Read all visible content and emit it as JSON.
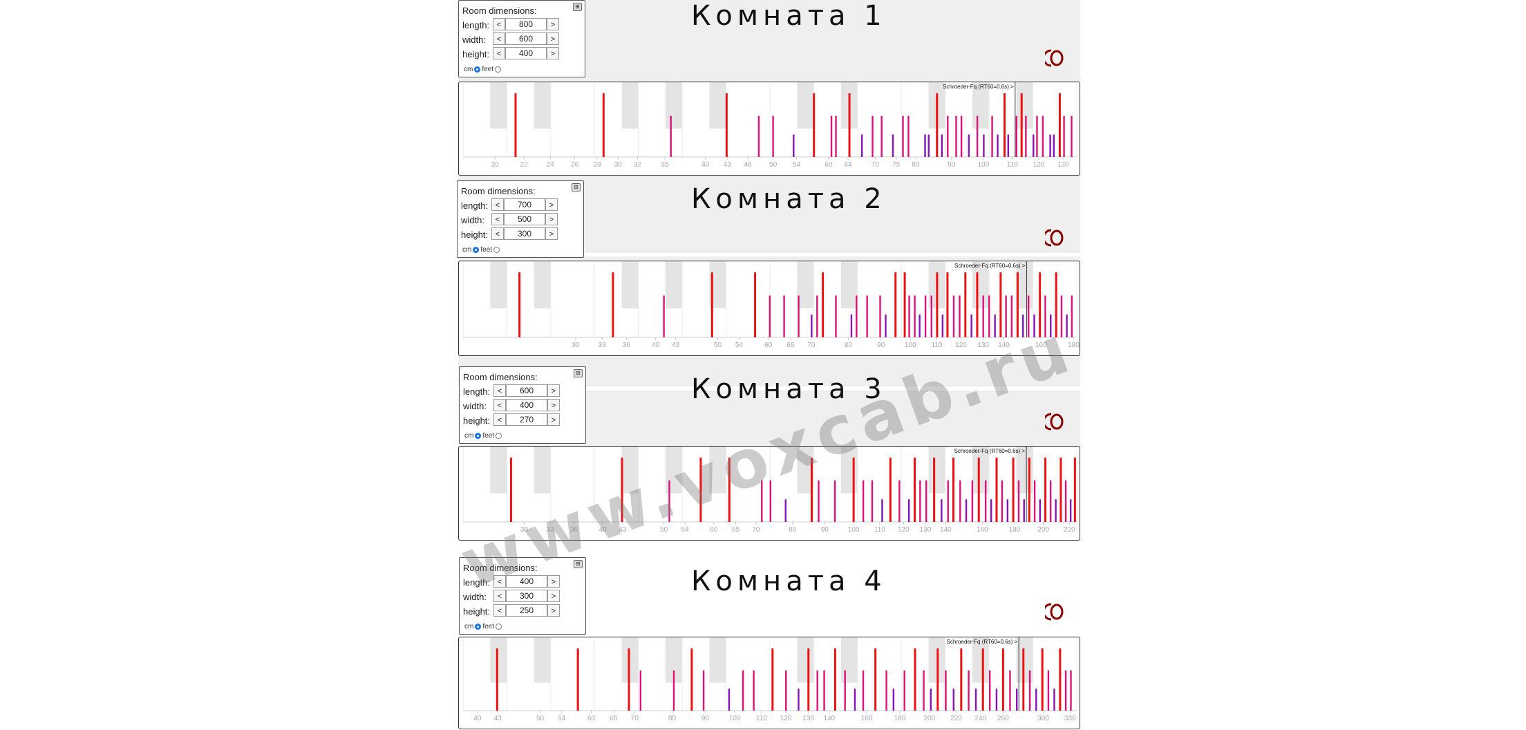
{
  "watermark": "www.voxcab.ru",
  "colors": {
    "mode_strong": "#ee1111",
    "mode_mid": "#dd1177",
    "mode_weak": "#8811bb",
    "logo": "#8b0000"
  },
  "rooms": [
    {
      "title": "Комната 1",
      "dims": {
        "header": "Room dimensions:",
        "close": "⊞",
        "length_label": "length:",
        "width_label": "width:",
        "height_label": "height:",
        "length": "800",
        "width": "600",
        "height": "400",
        "cm": "cm",
        "feet": "feet",
        "dec": "<",
        "inc": ">"
      },
      "graph": {
        "schroeder_label": "Schroeder-Fq (RT60=0.6s) >",
        "freq_min": 18,
        "freq_max": 136,
        "schroeder_freq": 111,
        "ticks": [
          "20",
          "22",
          "24",
          "26",
          "28",
          "30",
          "32",
          "35",
          "40",
          "43",
          "46",
          "50",
          "54",
          "60",
          "64",
          "70",
          "75",
          "80",
          "90",
          "100",
          "110",
          "120",
          "130"
        ],
        "modes": [
          {
            "f": 21.4,
            "level": 3
          },
          {
            "f": 28.6,
            "level": 3
          },
          {
            "f": 35.7,
            "level": 2
          },
          {
            "f": 42.9,
            "level": 3
          },
          {
            "f": 47.7,
            "level": 2
          },
          {
            "f": 50.0,
            "level": 2
          },
          {
            "f": 53.5,
            "level": 1
          },
          {
            "f": 57.2,
            "level": 3
          },
          {
            "f": 60.6,
            "level": 2
          },
          {
            "f": 61.5,
            "level": 2
          },
          {
            "f": 64.3,
            "level": 3
          },
          {
            "f": 67.0,
            "level": 1
          },
          {
            "f": 69.4,
            "level": 2
          },
          {
            "f": 71.5,
            "level": 2
          },
          {
            "f": 74.2,
            "level": 1
          },
          {
            "f": 76.7,
            "level": 2
          },
          {
            "f": 78.1,
            "level": 2
          },
          {
            "f": 82.5,
            "level": 1
          },
          {
            "f": 83.5,
            "level": 1
          },
          {
            "f": 85.8,
            "level": 3
          },
          {
            "f": 87.2,
            "level": 1
          },
          {
            "f": 88.9,
            "level": 2
          },
          {
            "f": 91.4,
            "level": 2
          },
          {
            "f": 93.0,
            "level": 2
          },
          {
            "f": 95.3,
            "level": 1
          },
          {
            "f": 98.0,
            "level": 2
          },
          {
            "f": 100.1,
            "level": 1
          },
          {
            "f": 102.9,
            "level": 2
          },
          {
            "f": 104.8,
            "level": 1
          },
          {
            "f": 107.2,
            "level": 3
          },
          {
            "f": 108.5,
            "level": 1
          },
          {
            "f": 111.5,
            "level": 2
          },
          {
            "f": 113.4,
            "level": 3
          },
          {
            "f": 115.0,
            "level": 2
          },
          {
            "f": 117.9,
            "level": 1
          },
          {
            "f": 119.3,
            "level": 2
          },
          {
            "f": 121.6,
            "level": 2
          },
          {
            "f": 124.6,
            "level": 1
          },
          {
            "f": 126.1,
            "level": 1
          },
          {
            "f": 128.6,
            "level": 3
          },
          {
            "f": 130.4,
            "level": 2
          },
          {
            "f": 133.7,
            "level": 2
          }
        ]
      }
    },
    {
      "title": "Комната 2",
      "dims": {
        "header": "Room dimensions:",
        "close": "⊞",
        "length_label": "length:",
        "width_label": "width:",
        "height_label": "height:",
        "length": "700",
        "width": "500",
        "height": "300",
        "cm": "cm",
        "feet": "feet",
        "dec": "<",
        "inc": ">"
      },
      "graph": {
        "schroeder_label": "Schroeder-Fq (RT60=0.6s) >",
        "freq_min": 20,
        "freq_max": 182,
        "schroeder_freq": 152,
        "ticks": [
          "30",
          "33",
          "36",
          "40",
          "43",
          "50",
          "54",
          "60",
          "65",
          "70",
          "80",
          "90",
          "100",
          "110",
          "120",
          "130",
          "140",
          "160",
          "180"
        ],
        "modes": [
          {
            "f": 24.5,
            "level": 3
          },
          {
            "f": 34.3,
            "level": 3
          },
          {
            "f": 41.2,
            "level": 2
          },
          {
            "f": 49.0,
            "level": 3
          },
          {
            "f": 57.2,
            "level": 3
          },
          {
            "f": 60.3,
            "level": 2
          },
          {
            "f": 63.5,
            "level": 2
          },
          {
            "f": 66.9,
            "level": 2
          },
          {
            "f": 70.1,
            "level": 1
          },
          {
            "f": 71.5,
            "level": 2
          },
          {
            "f": 73.0,
            "level": 3
          },
          {
            "f": 76.5,
            "level": 2
          },
          {
            "f": 80.9,
            "level": 1
          },
          {
            "f": 82.4,
            "level": 2
          },
          {
            "f": 85.6,
            "level": 2
          },
          {
            "f": 89.7,
            "level": 2
          },
          {
            "f": 91.5,
            "level": 1
          },
          {
            "f": 94.8,
            "level": 3
          },
          {
            "f": 98.0,
            "level": 3
          },
          {
            "f": 99.6,
            "level": 2
          },
          {
            "f": 101.6,
            "level": 2
          },
          {
            "f": 103.4,
            "level": 1
          },
          {
            "f": 105.6,
            "level": 2
          },
          {
            "f": 107.9,
            "level": 2
          },
          {
            "f": 110.1,
            "level": 3
          },
          {
            "f": 112.3,
            "level": 1
          },
          {
            "f": 114.3,
            "level": 3
          },
          {
            "f": 116.9,
            "level": 2
          },
          {
            "f": 119.4,
            "level": 2
          },
          {
            "f": 121.9,
            "level": 3
          },
          {
            "f": 124.6,
            "level": 1
          },
          {
            "f": 127.2,
            "level": 3
          },
          {
            "f": 130.0,
            "level": 2
          },
          {
            "f": 132.8,
            "level": 2
          },
          {
            "f": 135.6,
            "level": 1
          },
          {
            "f": 138.4,
            "level": 3
          },
          {
            "f": 141.1,
            "level": 2
          },
          {
            "f": 144.0,
            "level": 2
          },
          {
            "f": 147.1,
            "level": 3
          },
          {
            "f": 150.0,
            "level": 1
          },
          {
            "f": 153.0,
            "level": 2
          },
          {
            "f": 156.2,
            "level": 1
          },
          {
            "f": 159.4,
            "level": 3
          },
          {
            "f": 162.5,
            "level": 2
          },
          {
            "f": 165.7,
            "level": 1
          },
          {
            "f": 169.0,
            "level": 3
          },
          {
            "f": 172.3,
            "level": 2
          },
          {
            "f": 175.6,
            "level": 1
          },
          {
            "f": 178.8,
            "level": 2
          }
        ]
      }
    },
    {
      "title": "Комната 3",
      "dims": {
        "header": "Room dimensions:",
        "close": "⊞",
        "length_label": "length:",
        "width_label": "width:",
        "height_label": "height:",
        "length": "600",
        "width": "400",
        "height": "270",
        "cm": "cm",
        "feet": "feet",
        "dec": "<",
        "inc": ">"
      },
      "graph": {
        "schroeder_label": "Schroeder-Fq (RT60=0.6s) >",
        "freq_min": 24,
        "freq_max": 226,
        "schroeder_freq": 188,
        "ticks": [
          "30",
          "33",
          "36",
          "40",
          "43",
          "50",
          "54",
          "60",
          "65",
          "70",
          "80",
          "90",
          "100",
          "110",
          "120",
          "130",
          "140",
          "160",
          "180",
          "200",
          "220"
        ],
        "modes": [
          {
            "f": 28.6,
            "level": 3
          },
          {
            "f": 42.9,
            "level": 3
          },
          {
            "f": 51.0,
            "level": 2
          },
          {
            "f": 57.2,
            "level": 3
          },
          {
            "f": 63.5,
            "level": 3
          },
          {
            "f": 71.5,
            "level": 2
          },
          {
            "f": 73.8,
            "level": 2
          },
          {
            "f": 78.0,
            "level": 1
          },
          {
            "f": 85.8,
            "level": 3
          },
          {
            "f": 88.0,
            "level": 2
          },
          {
            "f": 93.4,
            "level": 2
          },
          {
            "f": 100.0,
            "level": 3
          },
          {
            "f": 103.6,
            "level": 2
          },
          {
            "f": 107.0,
            "level": 2
          },
          {
            "f": 111.0,
            "level": 1
          },
          {
            "f": 114.4,
            "level": 3
          },
          {
            "f": 118.2,
            "level": 2
          },
          {
            "f": 122.4,
            "level": 1
          },
          {
            "f": 125.0,
            "level": 3
          },
          {
            "f": 127.5,
            "level": 2
          },
          {
            "f": 130.4,
            "level": 2
          },
          {
            "f": 134.2,
            "level": 3
          },
          {
            "f": 137.9,
            "level": 1
          },
          {
            "f": 141.2,
            "level": 2
          },
          {
            "f": 144.0,
            "level": 3
          },
          {
            "f": 147.6,
            "level": 2
          },
          {
            "f": 150.9,
            "level": 1
          },
          {
            "f": 154.3,
            "level": 2
          },
          {
            "f": 158.0,
            "level": 3
          },
          {
            "f": 162.0,
            "level": 2
          },
          {
            "f": 165.3,
            "level": 1
          },
          {
            "f": 168.6,
            "level": 3
          },
          {
            "f": 172.0,
            "level": 2
          },
          {
            "f": 175.5,
            "level": 1
          },
          {
            "f": 179.2,
            "level": 3
          },
          {
            "f": 182.8,
            "level": 2
          },
          {
            "f": 186.4,
            "level": 1
          },
          {
            "f": 190.0,
            "level": 3
          },
          {
            "f": 193.8,
            "level": 2
          },
          {
            "f": 197.6,
            "level": 1
          },
          {
            "f": 201.5,
            "level": 3
          },
          {
            "f": 205.4,
            "level": 2
          },
          {
            "f": 209.3,
            "level": 1
          },
          {
            "f": 213.2,
            "level": 3
          },
          {
            "f": 217.1,
            "level": 2
          },
          {
            "f": 221.0,
            "level": 1
          },
          {
            "f": 224.5,
            "level": 3
          }
        ]
      }
    },
    {
      "title": "Комната 4",
      "dims": {
        "header": "Room dimensions:",
        "close": "⊞",
        "length_label": "length:",
        "width_label": "width:",
        "height_label": "height:",
        "length": "400",
        "width": "300",
        "height": "250",
        "cm": "cm",
        "feet": "feet",
        "dec": "<",
        "inc": ">"
      },
      "graph": {
        "schroeder_label": "Schroeder-Fq (RT60=0.6s) >",
        "freq_min": 38,
        "freq_max": 338,
        "schroeder_freq": 275,
        "ticks": [
          "40",
          "43",
          "50",
          "54",
          "60",
          "65",
          "70",
          "80",
          "90",
          "100",
          "110",
          "120",
          "130",
          "140",
          "160",
          "180",
          "200",
          "220",
          "240",
          "260",
          "300",
          "330"
        ],
        "modes": [
          {
            "f": 42.9,
            "level": 3
          },
          {
            "f": 57.2,
            "level": 3
          },
          {
            "f": 68.6,
            "level": 3
          },
          {
            "f": 71.5,
            "level": 2
          },
          {
            "f": 80.5,
            "level": 2
          },
          {
            "f": 85.8,
            "level": 3
          },
          {
            "f": 89.5,
            "level": 2
          },
          {
            "f": 98.0,
            "level": 1
          },
          {
            "f": 103.0,
            "level": 2
          },
          {
            "f": 107.0,
            "level": 2
          },
          {
            "f": 114.4,
            "level": 3
          },
          {
            "f": 120.0,
            "level": 2
          },
          {
            "f": 125.5,
            "level": 1
          },
          {
            "f": 130.0,
            "level": 3
          },
          {
            "f": 134.2,
            "level": 2
          },
          {
            "f": 137.5,
            "level": 2
          },
          {
            "f": 143.0,
            "level": 3
          },
          {
            "f": 148.1,
            "level": 2
          },
          {
            "f": 153.4,
            "level": 1
          },
          {
            "f": 158.0,
            "level": 2
          },
          {
            "f": 165.0,
            "level": 3
          },
          {
            "f": 171.6,
            "level": 2
          },
          {
            "f": 176.0,
            "level": 1
          },
          {
            "f": 183.0,
            "level": 2
          },
          {
            "f": 190.0,
            "level": 3
          },
          {
            "f": 196.0,
            "level": 2
          },
          {
            "f": 201.0,
            "level": 1
          },
          {
            "f": 206.0,
            "level": 3
          },
          {
            "f": 212.0,
            "level": 2
          },
          {
            "f": 218.0,
            "level": 1
          },
          {
            "f": 224.0,
            "level": 3
          },
          {
            "f": 230.0,
            "level": 2
          },
          {
            "f": 236.0,
            "level": 1
          },
          {
            "f": 242.0,
            "level": 3
          },
          {
            "f": 248.0,
            "level": 2
          },
          {
            "f": 254.0,
            "level": 1
          },
          {
            "f": 260.0,
            "level": 3
          },
          {
            "f": 266.5,
            "level": 2
          },
          {
            "f": 273.0,
            "level": 1
          },
          {
            "f": 279.5,
            "level": 3
          },
          {
            "f": 286.0,
            "level": 2
          },
          {
            "f": 292.5,
            "level": 1
          },
          {
            "f": 299.0,
            "level": 3
          },
          {
            "f": 305.5,
            "level": 2
          },
          {
            "f": 312.0,
            "level": 1
          },
          {
            "f": 318.5,
            "level": 3
          },
          {
            "f": 325.0,
            "level": 2
          },
          {
            "f": 331.0,
            "level": 2
          }
        ]
      }
    }
  ]
}
